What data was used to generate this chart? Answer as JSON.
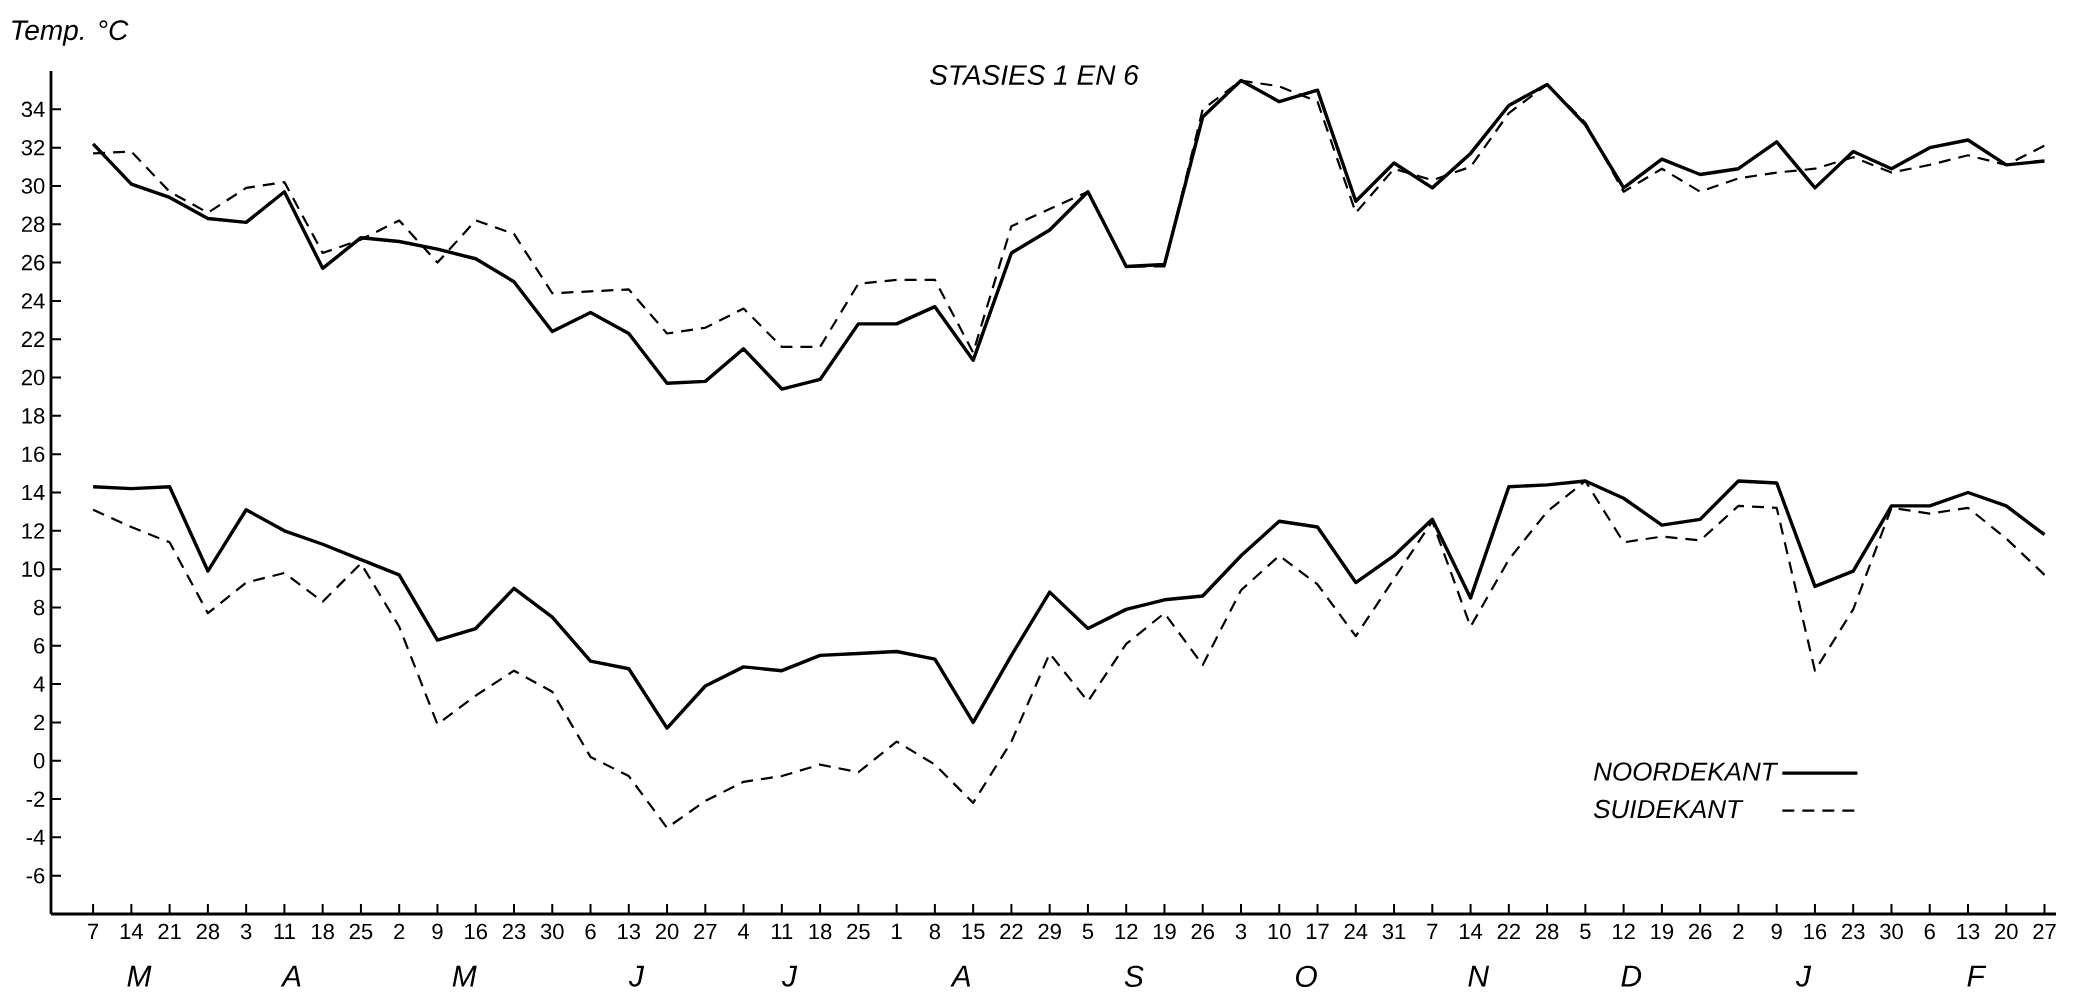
{
  "chart_data": {
    "type": "line",
    "title": "STASIES 1 EN 6",
    "ylabel": "Temp. °C",
    "categories": [
      "7",
      "14",
      "21",
      "28",
      "3",
      "11",
      "18",
      "25",
      "2",
      "9",
      "16",
      "23",
      "30",
      "6",
      "13",
      "20",
      "27",
      "4",
      "11",
      "18",
      "25",
      "1",
      "8",
      "15",
      "22",
      "29",
      "5",
      "12",
      "19",
      "26",
      "3",
      "10",
      "17",
      "24",
      "31",
      "7",
      "14",
      "22",
      "28",
      "5",
      "12",
      "19",
      "26",
      "2",
      "9",
      "16",
      "23",
      "30",
      "6",
      "13",
      "20",
      "27"
    ],
    "annotations": [
      "M",
      "A",
      "M",
      "J",
      "J",
      "A",
      "S",
      "O",
      "N",
      "D",
      "J",
      "F"
    ],
    "ylim": [
      -8,
      36
    ],
    "yticks": [
      -6,
      -4,
      -2,
      0,
      2,
      4,
      6,
      8,
      10,
      12,
      14,
      16,
      18,
      20,
      22,
      24,
      26,
      28,
      30,
      32,
      34
    ],
    "legend": "bottom right",
    "marker": "none",
    "series": [
      {
        "name": "NOORDEKANT",
        "color": "#000000",
        "line_style": "solid",
        "values": [
          32.2,
          30.1,
          29.4,
          28.3,
          28.1,
          29.7,
          25.7,
          27.3,
          27.1,
          26.7,
          26.2,
          25.0,
          22.4,
          23.4,
          22.3,
          19.7,
          19.8,
          21.5,
          19.4,
          19.9,
          22.8,
          22.8,
          23.7,
          20.9,
          26.5,
          27.7,
          29.7,
          25.8,
          25.9,
          33.6,
          35.5,
          34.4,
          35.0,
          29.2,
          31.2,
          29.9,
          31.7,
          34.2,
          35.3,
          33.2,
          29.9,
          31.4,
          30.6,
          30.9,
          32.3,
          29.9,
          31.8,
          30.9,
          32.0,
          32.4,
          31.1,
          31.3
        ]
      },
      {
        "name": "SUIDEKANT",
        "color": "#000000",
        "line_style": "dashed",
        "values": [
          31.7,
          31.8,
          29.7,
          28.6,
          29.9,
          30.2,
          26.5,
          27.2,
          28.2,
          26.0,
          28.2,
          27.5,
          24.4,
          24.5,
          24.6,
          22.3,
          22.6,
          23.6,
          21.6,
          21.6,
          24.9,
          25.1,
          25.1,
          21.3,
          27.9,
          28.8,
          29.7,
          25.8,
          25.8,
          34.0,
          35.5,
          35.2,
          34.4,
          28.6,
          30.9,
          30.3,
          31.0,
          33.8,
          35.3,
          33.3,
          29.7,
          30.9,
          29.7,
          30.4,
          30.7,
          30.9,
          31.5,
          30.7,
          31.1,
          31.6,
          31.1,
          32.1
        ]
      },
      {
        "color": "#000000",
        "line_style": "solid",
        "values": [
          14.3,
          14.2,
          14.3,
          9.9,
          13.1,
          12.0,
          11.3,
          10.5,
          9.7,
          6.3,
          6.9,
          9.0,
          7.5,
          5.2,
          4.8,
          1.7,
          3.9,
          4.9,
          4.7,
          5.5,
          5.6,
          5.7,
          5.3,
          2.0,
          5.5,
          8.8,
          6.9,
          7.9,
          8.4,
          8.6,
          10.7,
          12.5,
          12.2,
          9.3,
          10.7,
          12.6,
          8.5,
          14.3,
          14.4,
          14.6,
          13.7,
          12.3,
          12.6,
          14.6,
          14.5,
          9.1,
          9.9,
          13.3,
          13.3,
          14.0,
          13.3,
          11.8
        ]
      },
      {
        "color": "#000000",
        "line_style": "dashed",
        "values": [
          13.1,
          12.2,
          11.4,
          7.7,
          9.3,
          9.8,
          8.3,
          10.3,
          7.0,
          1.9,
          3.4,
          4.7,
          3.6,
          0.2,
          -0.8,
          -3.5,
          -2.1,
          -1.1,
          -0.8,
          -0.2,
          -0.6,
          1.0,
          -0.2,
          -2.2,
          1.0,
          5.6,
          3.1,
          6.1,
          7.7,
          5.0,
          8.9,
          10.7,
          9.2,
          6.5,
          9.5,
          12.5,
          7.0,
          10.5,
          13.0,
          14.6,
          11.4,
          11.7,
          11.5,
          13.3,
          13.2,
          4.7,
          7.9,
          13.2,
          12.9,
          13.2,
          11.6,
          9.7
        ]
      }
    ]
  }
}
